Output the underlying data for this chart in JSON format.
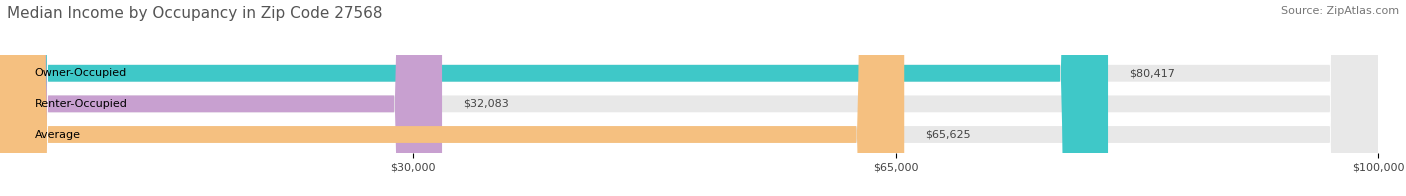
{
  "title": "Median Income by Occupancy in Zip Code 27568",
  "source": "Source: ZipAtlas.com",
  "categories": [
    "Owner-Occupied",
    "Renter-Occupied",
    "Average"
  ],
  "values": [
    80417,
    32083,
    65625
  ],
  "labels": [
    "$80,417",
    "$32,083",
    "$65,625"
  ],
  "bar_colors": [
    "#3fc8c8",
    "#c8a0d0",
    "#f5c080"
  ],
  "bar_bg_color": "#e8e8e8",
  "xmax": 100000,
  "xticks": [
    30000,
    65000,
    100000
  ],
  "xticklabels": [
    "$30,000",
    "$65,000",
    "$100,000"
  ],
  "title_fontsize": 11,
  "source_fontsize": 8,
  "label_fontsize": 8,
  "bar_height": 0.55,
  "figsize": [
    14.06,
    1.96
  ],
  "dpi": 100
}
